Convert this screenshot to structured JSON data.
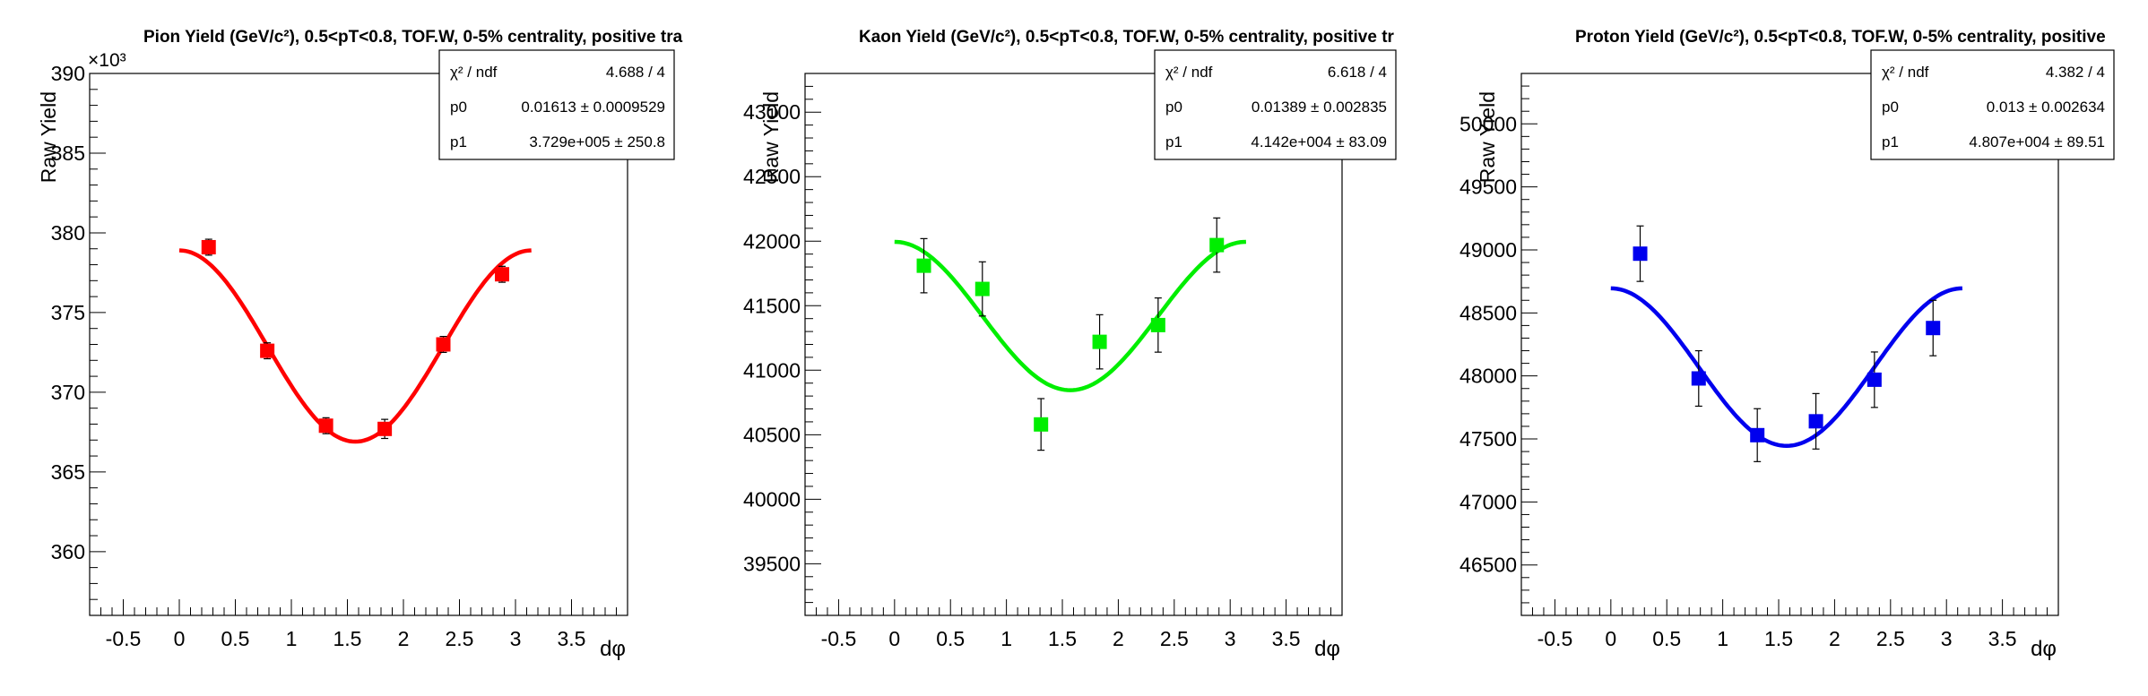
{
  "chart_data": [
    {
      "type": "scatter",
      "title": "Pion Yield (GeV/c²), 0.5<pT<0.8, TOF.W, 0-5% centrality, positive tra",
      "xlabel": "dφ",
      "ylabel": "Raw Yield",
      "exponent_label": "×10³",
      "xlim": [
        -0.8,
        4.0
      ],
      "ylim": [
        356,
        390
      ],
      "x_ticks": [
        "-0.5",
        "0",
        "0.5",
        "1",
        "1.5",
        "2",
        "2.5",
        "3",
        "3.5"
      ],
      "y_ticks": [
        "360",
        "365",
        "370",
        "375",
        "380",
        "385",
        "390"
      ],
      "color": "#ff0000",
      "points": [
        {
          "x": 0.262,
          "y": 379.1,
          "err": 0.5
        },
        {
          "x": 0.785,
          "y": 372.6,
          "err": 0.5
        },
        {
          "x": 1.309,
          "y": 367.9,
          "err": 0.5
        },
        {
          "x": 1.833,
          "y": 367.7,
          "err": 0.6
        },
        {
          "x": 2.356,
          "y": 373.0,
          "err": 0.5
        },
        {
          "x": 2.88,
          "y": 377.4,
          "err": 0.5
        }
      ],
      "fit": {
        "x_range": [
          0.0,
          3.1416
        ],
        "center": 372.9,
        "amplitude": 6.0
      },
      "stats": [
        {
          "label": "χ² / ndf",
          "value": "4.688 / 4"
        },
        {
          "label": "p0",
          "value": "0.01613 ± 0.0009529"
        },
        {
          "label": "p1",
          "value": "3.729e+005 ± 250.8"
        }
      ]
    },
    {
      "type": "scatter",
      "title": "Kaon Yield (GeV/c²), 0.5<pT<0.8, TOF.W, 0-5% centrality, positive tr",
      "xlabel": "dφ",
      "ylabel": "Raw Yield",
      "exponent_label": "",
      "xlim": [
        -0.8,
        4.0
      ],
      "ylim": [
        39100,
        43300
      ],
      "x_ticks": [
        "-0.5",
        "0",
        "0.5",
        "1",
        "1.5",
        "2",
        "2.5",
        "3",
        "3.5"
      ],
      "y_ticks": [
        "39500",
        "40000",
        "40500",
        "41000",
        "41500",
        "42000",
        "42500",
        "43000"
      ],
      "color": "#00ee00",
      "points": [
        {
          "x": 0.262,
          "y": 41810,
          "err": 210
        },
        {
          "x": 0.785,
          "y": 41630,
          "err": 210
        },
        {
          "x": 1.309,
          "y": 40580,
          "err": 200
        },
        {
          "x": 1.833,
          "y": 41220,
          "err": 210
        },
        {
          "x": 2.356,
          "y": 41350,
          "err": 210
        },
        {
          "x": 2.88,
          "y": 41970,
          "err": 210
        }
      ],
      "fit": {
        "x_range": [
          0.0,
          3.1416
        ],
        "center": 41420,
        "amplitude": 575
      },
      "stats": [
        {
          "label": "χ² / ndf",
          "value": "6.618 / 4"
        },
        {
          "label": "p0",
          "value": "0.01389 ± 0.002835"
        },
        {
          "label": "p1",
          "value": "4.142e+004 ± 83.09"
        }
      ]
    },
    {
      "type": "scatter",
      "title": "Proton Yield (GeV/c²), 0.5<pT<0.8, TOF.W, 0-5% centrality, positive",
      "xlabel": "dφ",
      "ylabel": "Raw Yield",
      "exponent_label": "",
      "xlim": [
        -0.8,
        4.0
      ],
      "ylim": [
        46100,
        50400
      ],
      "x_ticks": [
        "-0.5",
        "0",
        "0.5",
        "1",
        "1.5",
        "2",
        "2.5",
        "3",
        "3.5"
      ],
      "y_ticks": [
        "46500",
        "47000",
        "47500",
        "48000",
        "48500",
        "49000",
        "49500",
        "50000"
      ],
      "color": "#0000ee",
      "points": [
        {
          "x": 0.262,
          "y": 48970,
          "err": 220
        },
        {
          "x": 0.785,
          "y": 47980,
          "err": 220
        },
        {
          "x": 1.309,
          "y": 47530,
          "err": 210
        },
        {
          "x": 1.833,
          "y": 47640,
          "err": 220
        },
        {
          "x": 2.356,
          "y": 47970,
          "err": 220
        },
        {
          "x": 2.88,
          "y": 48380,
          "err": 220
        }
      ],
      "fit": {
        "x_range": [
          0.0,
          3.1416
        ],
        "center": 48070,
        "amplitude": 625
      },
      "stats": [
        {
          "label": "χ² / ndf",
          "value": "4.382 / 4"
        },
        {
          "label": "p0",
          "value": "0.013 ± 0.002634"
        },
        {
          "label": "p1",
          "value": "4.807e+004 ± 89.51"
        }
      ]
    }
  ]
}
